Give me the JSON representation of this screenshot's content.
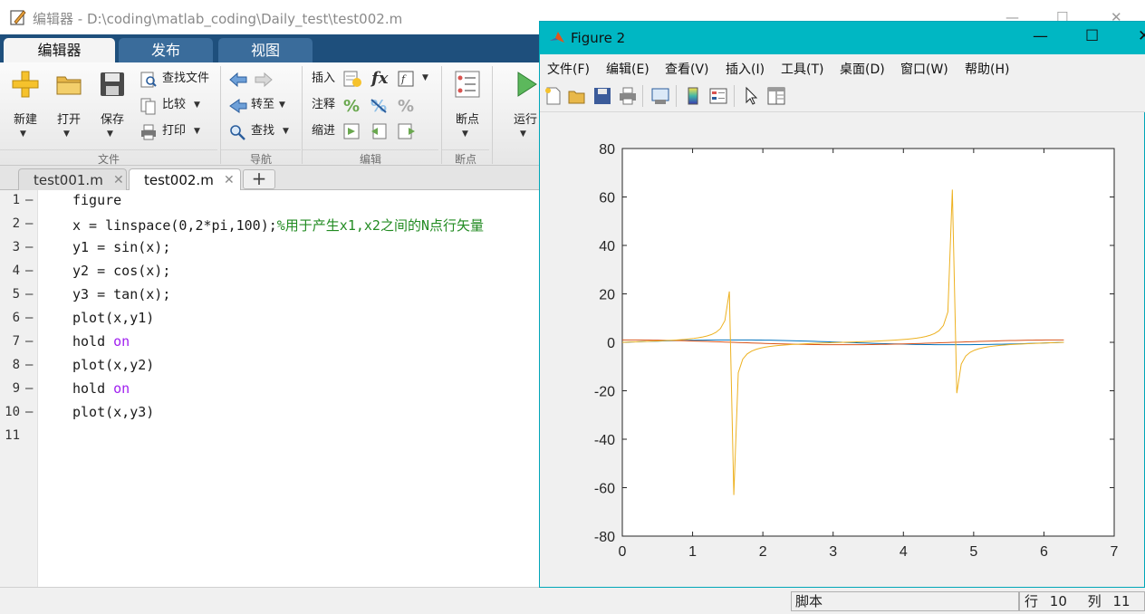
{
  "editor": {
    "title": "编辑器 - D:\\coding\\matlab_coding\\Daily_test\\test002.m",
    "ribbon_tabs": [
      "编辑器",
      "发布",
      "视图"
    ],
    "file_group": {
      "label": "文件",
      "new": "新建",
      "open": "打开",
      "save": "保存",
      "find_files": "查找文件",
      "compare": "比较",
      "print": "打印"
    },
    "nav_group": {
      "label": "导航",
      "goto": "转至",
      "find": "查找"
    },
    "edit_group": {
      "label": "编辑",
      "insert": "插入",
      "comment": "注释",
      "indent": "缩进",
      "fx": "fx"
    },
    "breakpoint_group": {
      "label": "断点",
      "breakpoints": "断点"
    },
    "run_label": "运行",
    "doc_tabs": [
      "test001.m",
      "test002.m"
    ],
    "code_lines": [
      {
        "num": "1",
        "dash": "—",
        "parts": [
          {
            "t": "figure",
            "c": ""
          }
        ]
      },
      {
        "num": "2",
        "dash": "—",
        "parts": [
          {
            "t": "x = linspace(0,2*pi,100);",
            "c": ""
          },
          {
            "t": "%用于产生x1,x2之间的N点行矢量",
            "c": "cm"
          }
        ]
      },
      {
        "num": "3",
        "dash": "—",
        "parts": [
          {
            "t": "y1 = sin(x);",
            "c": ""
          }
        ]
      },
      {
        "num": "4",
        "dash": "—",
        "parts": [
          {
            "t": "y2 = cos(x);",
            "c": ""
          }
        ]
      },
      {
        "num": "5",
        "dash": "—",
        "parts": [
          {
            "t": "y3 = tan(x);",
            "c": ""
          }
        ]
      },
      {
        "num": "6",
        "dash": "—",
        "parts": [
          {
            "t": "plot(x,y1)",
            "c": ""
          }
        ]
      },
      {
        "num": "7",
        "dash": "—",
        "parts": [
          {
            "t": "hold ",
            "c": ""
          },
          {
            "t": "on",
            "c": "kw"
          }
        ]
      },
      {
        "num": "8",
        "dash": "—",
        "parts": [
          {
            "t": "plot(x,y2)",
            "c": ""
          }
        ]
      },
      {
        "num": "9",
        "dash": "—",
        "parts": [
          {
            "t": "hold ",
            "c": ""
          },
          {
            "t": "on",
            "c": "kw"
          }
        ]
      },
      {
        "num": "10",
        "dash": "—",
        "parts": [
          {
            "t": "plot(x,y3)",
            "c": ""
          }
        ]
      },
      {
        "num": "11",
        "dash": "",
        "parts": []
      }
    ],
    "status": {
      "mode": "脚本",
      "row_label": "行",
      "row": "10",
      "col_label": "列",
      "col": "11"
    }
  },
  "figure": {
    "title": "Figure 2",
    "menu": [
      "文件(F)",
      "编辑(E)",
      "查看(V)",
      "插入(I)",
      "工具(T)",
      "桌面(D)",
      "窗口(W)",
      "帮助(H)"
    ],
    "toolbar_icons": [
      "new-figure-icon",
      "open-file-icon",
      "save-icon",
      "print-icon",
      "link-plot-icon",
      "colorbar-icon",
      "legend-icon",
      "pointer-icon",
      "property-editor-icon"
    ]
  },
  "chart_data": {
    "type": "line",
    "xlim": [
      0,
      7
    ],
    "ylim": [
      -80,
      80
    ],
    "xticks": [
      0,
      1,
      2,
      3,
      4,
      5,
      6,
      7
    ],
    "yticks": [
      80,
      60,
      40,
      20,
      0,
      -20,
      -40,
      -60,
      -80
    ],
    "grid": false,
    "x": "linspace(0, 2*pi, 100)",
    "series": [
      {
        "expr": "sin(x)",
        "color": "#0072bd"
      },
      {
        "expr": "cos(x)",
        "color": "#d95319"
      },
      {
        "expr": "tan(x)",
        "color": "#edb120"
      }
    ],
    "tan_extremes": {
      "peak1": 20.9,
      "trough1": -63.7,
      "peak2": 63.7,
      "trough2": -21.0
    }
  },
  "colors": {
    "ribbon_tab_bar": "#1e4f7c",
    "figure_titlebar": "#00b7c3",
    "comment": "#228b22",
    "keyword": "#a020f0"
  }
}
